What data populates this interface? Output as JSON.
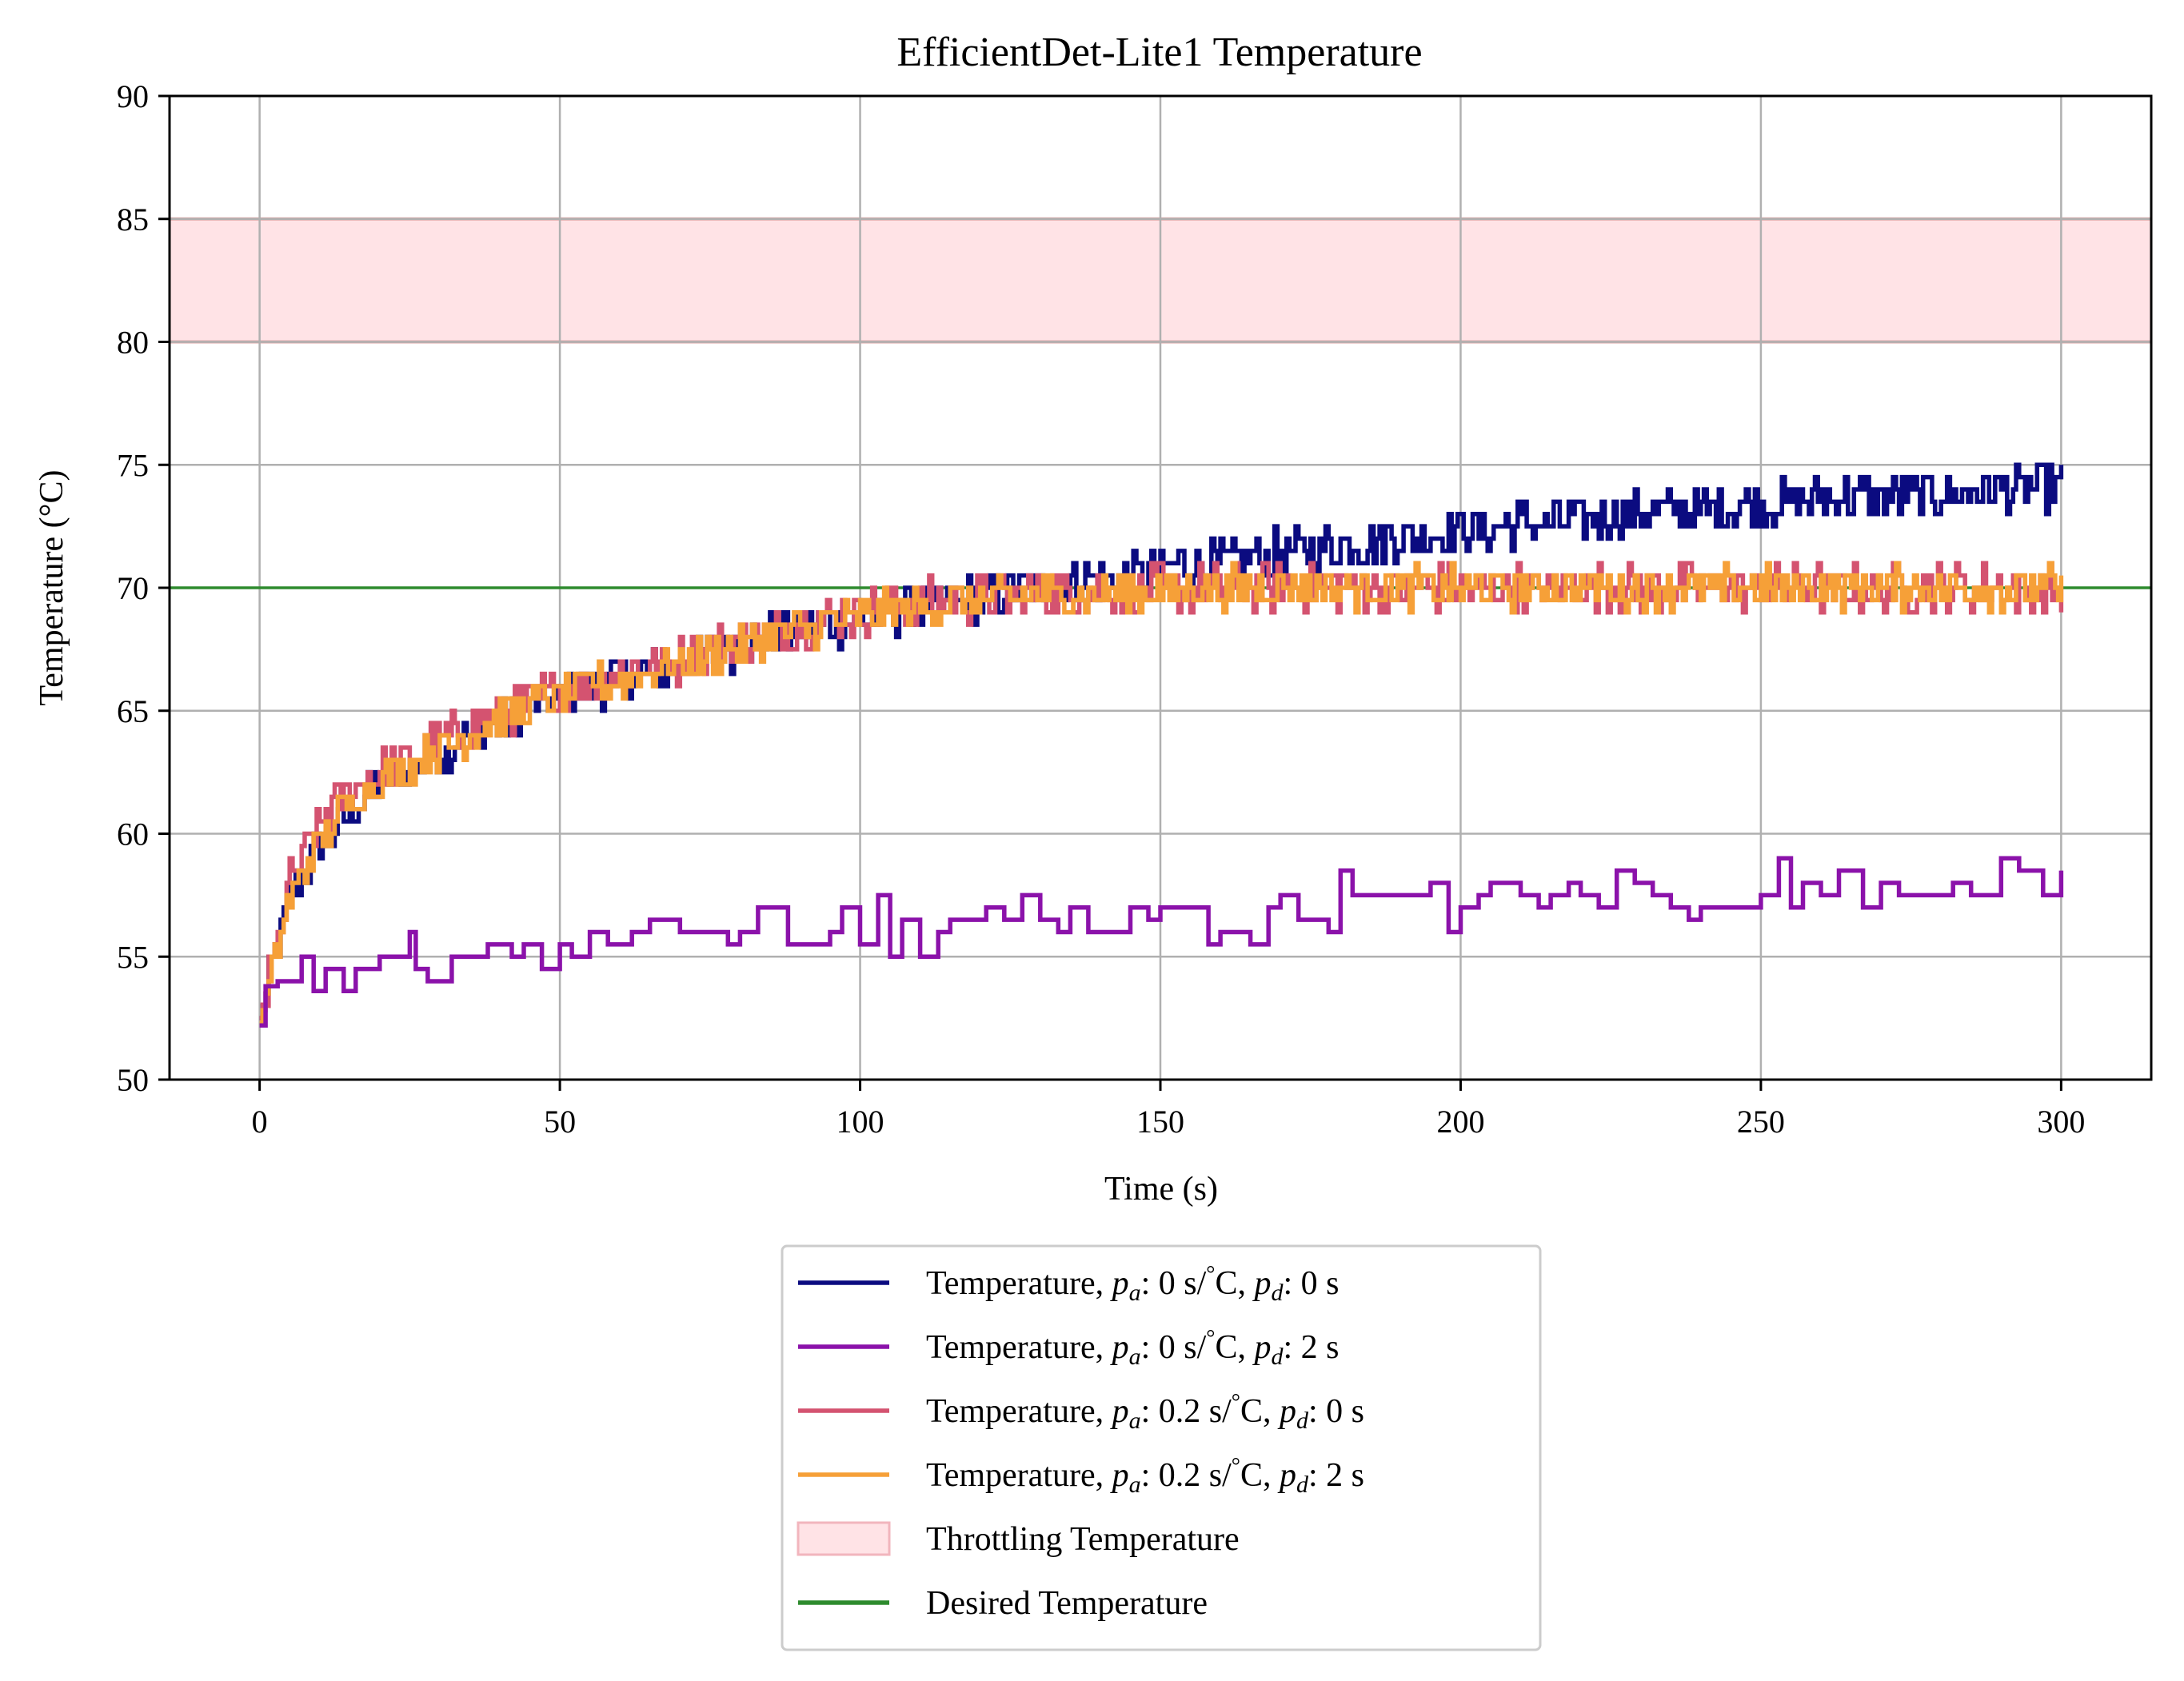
{
  "chart_data": {
    "type": "line",
    "title": "EfficientDet-Lite1 Temperature",
    "xlabel": "Time (s)",
    "ylabel": "Temperature (°C)",
    "xlim": [
      -15,
      315
    ],
    "ylim": [
      50,
      90
    ],
    "xticks": [
      0,
      50,
      100,
      150,
      200,
      250,
      300
    ],
    "yticks": [
      50,
      55,
      60,
      65,
      70,
      75,
      80,
      85,
      90
    ],
    "grid": true,
    "legend_position": "below plot",
    "throttling_band": {
      "name": "Throttling Temperature",
      "y0": 80,
      "y1": 85,
      "fill": "#ffe3e6",
      "edge": "#e0a9a9"
    },
    "desired_line": {
      "name": "Desired Temperature",
      "y": 70,
      "color": "#2e8b2e"
    },
    "series": [
      {
        "name": "Temperature, pa: 0 s/°C, pd: 0 s",
        "legend": {
          "prefix": "Temperature, ",
          "pa": "0 s/",
          "deg": "°",
          "mid": "C, ",
          "pd": "0 s"
        },
        "color": "#0b0b80",
        "x": [
          0,
          5,
          10,
          15,
          20,
          25,
          30,
          35,
          40,
          45,
          50,
          55,
          60,
          65,
          70,
          75,
          80,
          85,
          90,
          95,
          100,
          110,
          120,
          130,
          140,
          150,
          160,
          170,
          180,
          190,
          200,
          210,
          220,
          230,
          240,
          250,
          260,
          270,
          280,
          290,
          300
        ],
        "y": [
          52.5,
          57.5,
          59.5,
          61,
          62,
          62.7,
          63.3,
          64,
          64.6,
          65.1,
          65.5,
          66,
          66.3,
          66.6,
          66.9,
          67.3,
          67.7,
          68,
          68.3,
          68.5,
          68.8,
          69.2,
          69.6,
          70,
          70.4,
          70.8,
          71.1,
          71.4,
          71.7,
          72,
          72.3,
          72.6,
          72.8,
          73,
          73.2,
          73.4,
          73.6,
          73.7,
          73.8,
          74,
          74.1
        ],
        "noise": 0.9
      },
      {
        "name": "Temperature, pa: 0 s/°C, pd: 2 s",
        "legend": {
          "prefix": "Temperature, ",
          "pa": "0 s/",
          "deg": "°",
          "mid": "C, ",
          "pd": "2 s"
        },
        "color": "#8b12aa",
        "x": [
          0,
          1,
          3,
          7,
          9,
          11,
          14,
          16,
          18,
          20,
          23,
          25,
          26,
          28,
          32,
          35,
          38,
          42,
          44,
          47,
          50,
          52,
          55,
          58,
          62,
          65,
          70,
          75,
          78,
          80,
          83,
          88,
          95,
          97,
          100,
          103,
          105,
          107,
          110,
          113,
          115,
          117,
          121,
          124,
          127,
          130,
          133,
          135,
          138,
          141,
          145,
          148,
          150,
          155,
          158,
          160,
          165,
          168,
          170,
          173,
          175,
          178,
          180,
          182,
          186,
          195,
          198,
          200,
          203,
          205,
          210,
          213,
          215,
          218,
          220,
          223,
          226,
          229,
          232,
          235,
          238,
          240,
          245,
          250,
          253,
          255,
          257,
          260,
          263,
          267,
          270,
          273,
          278,
          282,
          285,
          288,
          290,
          293,
          297,
          300
        ],
        "y": [
          52.2,
          53.8,
          54,
          55,
          53.6,
          54.5,
          53.6,
          54.5,
          54.5,
          55,
          55,
          56,
          54.5,
          54,
          55,
          55,
          55.5,
          55,
          55.5,
          54.5,
          55.5,
          55,
          56,
          55.5,
          56,
          56.5,
          56,
          56,
          55.5,
          56,
          57,
          55.5,
          56,
          57,
          55.5,
          57.5,
          55,
          56.5,
          55,
          56,
          56.5,
          56.5,
          57,
          56.5,
          57.5,
          56.5,
          56,
          57,
          56,
          56,
          57,
          56.5,
          57,
          57,
          55.5,
          56,
          55.5,
          57,
          57.5,
          56.5,
          56.5,
          56,
          58.5,
          57.5,
          57.5,
          58,
          56,
          57,
          57.5,
          58,
          57.5,
          57,
          57.5,
          58,
          57.5,
          57,
          58.5,
          58,
          57.5,
          57,
          56.5,
          57,
          57,
          57.5,
          59,
          57,
          58,
          57.5,
          58.5,
          57,
          58,
          57.5,
          57.5,
          58,
          57.5,
          57.5,
          59,
          58.5,
          57.5,
          58.5
        ]
      },
      {
        "name": "Temperature, pa: 0.2 s/°C, pd: 0 s",
        "legend": {
          "prefix": "Temperature, ",
          "pa": "0.2 s/",
          "deg": "°",
          "mid": "C, ",
          "pd": "0 s"
        },
        "color": "#d45370",
        "x": [
          0,
          5,
          10,
          15,
          20,
          25,
          30,
          35,
          40,
          45,
          50,
          55,
          60,
          65,
          70,
          75,
          80,
          85,
          90,
          95,
          100,
          105,
          110,
          115,
          120,
          125,
          130,
          140,
          150,
          160,
          170,
          180,
          200,
          220,
          240,
          260,
          280,
          300
        ],
        "y": [
          52.5,
          58,
          60.5,
          61.8,
          62.5,
          63.1,
          63.7,
          64.3,
          64.9,
          65.4,
          65.8,
          66.2,
          66.5,
          66.8,
          67.1,
          67.5,
          67.9,
          68.2,
          68.5,
          68.8,
          69,
          69.2,
          69.4,
          69.5,
          69.6,
          69.7,
          69.8,
          69.9,
          69.95,
          70,
          70,
          70,
          70,
          70,
          70,
          70,
          70,
          70
        ],
        "noise": 0.9
      },
      {
        "name": "Temperature, pa: 0.2 s/°C, pd: 2 s",
        "legend": {
          "prefix": "Temperature, ",
          "pa": "0.2 s/",
          "deg": "°",
          "mid": "C, ",
          "pd": "2 s"
        },
        "color": "#f6a038",
        "x": [
          0,
          5,
          10,
          15,
          20,
          25,
          30,
          35,
          40,
          45,
          50,
          55,
          60,
          65,
          70,
          75,
          80,
          85,
          90,
          95,
          100,
          105,
          110,
          115,
          120,
          125,
          130,
          140,
          150,
          160,
          170,
          180,
          200,
          220,
          240,
          260,
          280,
          300
        ],
        "y": [
          52.3,
          57.5,
          59.8,
          61.3,
          62.2,
          62.8,
          63.5,
          64.1,
          64.7,
          65.2,
          65.6,
          66,
          66.3,
          66.6,
          66.9,
          67.3,
          67.7,
          68,
          68.3,
          68.6,
          68.8,
          69,
          69.2,
          69.4,
          69.5,
          69.6,
          69.7,
          69.8,
          69.9,
          70,
          70,
          70,
          70,
          70,
          70,
          70,
          70,
          70
        ],
        "noise": 0.8
      }
    ]
  }
}
